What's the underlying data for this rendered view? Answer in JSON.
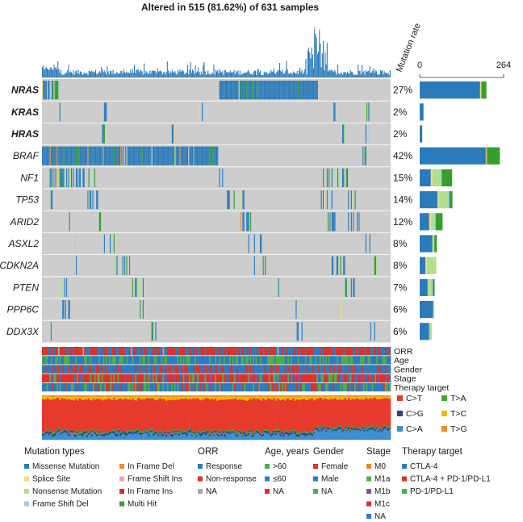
{
  "chart_data": {
    "type": "heatmap",
    "title": "Altered in 515 (81.62%) of 631 samples",
    "mutation_rate_label": "Mutation rate",
    "rate_axis": {
      "min": "0",
      "max": "264"
    },
    "genes": [
      {
        "name": "NRAS",
        "bold": true,
        "italic": true,
        "pct": "27%",
        "bars": [
          {
            "cat": "Missense Mutation",
            "value": 190
          },
          {
            "cat": "Splice Site",
            "value": 4
          },
          {
            "cat": "Multi Hit",
            "value": 16
          }
        ]
      },
      {
        "name": "KRAS",
        "bold": true,
        "italic": true,
        "pct": "2%",
        "bars": [
          {
            "cat": "Missense Mutation",
            "value": 12
          }
        ]
      },
      {
        "name": "HRAS",
        "bold": true,
        "italic": true,
        "pct": "2%",
        "bars": [
          {
            "cat": "Missense Mutation",
            "value": 8
          }
        ]
      },
      {
        "name": "BRAF",
        "bold": false,
        "italic": true,
        "pct": "42%",
        "bars": [
          {
            "cat": "Missense Mutation",
            "value": 207
          },
          {
            "cat": "In Frame Del",
            "value": 3
          },
          {
            "cat": "Frame Shift Ins",
            "value": 2
          },
          {
            "cat": "Multi Hit",
            "value": 40
          }
        ]
      },
      {
        "name": "NF1",
        "bold": false,
        "italic": true,
        "pct": "15%",
        "bars": [
          {
            "cat": "Missense Mutation",
            "value": 35
          },
          {
            "cat": "Splice Site",
            "value": 5
          },
          {
            "cat": "Nonsense Mutation",
            "value": 25
          },
          {
            "cat": "Frame Shift Del",
            "value": 4
          },
          {
            "cat": "Multi Hit",
            "value": 33
          }
        ]
      },
      {
        "name": "TP53",
        "bold": false,
        "italic": true,
        "pct": "14%",
        "bars": [
          {
            "cat": "Missense Mutation",
            "value": 56
          },
          {
            "cat": "Splice Site",
            "value": 3
          },
          {
            "cat": "Nonsense Mutation",
            "value": 30
          },
          {
            "cat": "Frame Shift Del",
            "value": 4
          },
          {
            "cat": "Multi Hit",
            "value": 10
          }
        ]
      },
      {
        "name": "ARID2",
        "bold": false,
        "italic": true,
        "pct": "12%",
        "bars": [
          {
            "cat": "Missense Mutation",
            "value": 30
          },
          {
            "cat": "Splice Site",
            "value": 6
          },
          {
            "cat": "Nonsense Mutation",
            "value": 10
          },
          {
            "cat": "Frame Shift Del",
            "value": 4
          },
          {
            "cat": "Multi Hit",
            "value": 22
          }
        ]
      },
      {
        "name": "ASXL2",
        "bold": false,
        "italic": true,
        "pct": "8%",
        "bars": [
          {
            "cat": "Missense Mutation",
            "value": 40
          },
          {
            "cat": "Nonsense Mutation",
            "value": 6
          },
          {
            "cat": "Multi Hit",
            "value": 8
          }
        ]
      },
      {
        "name": "CDKN2A",
        "bold": false,
        "italic": true,
        "pct": "8%",
        "bars": [
          {
            "cat": "Missense Mutation",
            "value": 18
          },
          {
            "cat": "Splice Site",
            "value": 4
          },
          {
            "cat": "Nonsense Mutation",
            "value": 30
          }
        ]
      },
      {
        "name": "PTEN",
        "bold": false,
        "italic": true,
        "pct": "7%",
        "bars": [
          {
            "cat": "Missense Mutation",
            "value": 25
          },
          {
            "cat": "Nonsense Mutation",
            "value": 10
          },
          {
            "cat": "Frame Shift Del",
            "value": 6
          },
          {
            "cat": "Multi Hit",
            "value": 6
          }
        ]
      },
      {
        "name": "PPP6C",
        "bold": false,
        "italic": true,
        "pct": "6%",
        "bars": [
          {
            "cat": "Missense Mutation",
            "value": 42
          },
          {
            "cat": "Nonsense Mutation",
            "value": 4
          }
        ]
      },
      {
        "name": "DDX3X",
        "bold": false,
        "italic": true,
        "pct": "6%",
        "bars": [
          {
            "cat": "Missense Mutation",
            "value": 30
          },
          {
            "cat": "Nonsense Mutation",
            "value": 8
          }
        ]
      }
    ],
    "clinical_tracks": [
      "ORR",
      "Age",
      "Gender",
      "Stage",
      "Therapy target"
    ],
    "substitution_types": [
      {
        "label": "C>T",
        "color": "#e53a2c"
      },
      {
        "label": "T>A",
        "color": "#3aa83a"
      },
      {
        "label": "C>G",
        "color": "#2e3f8f"
      },
      {
        "label": "T>C",
        "color": "#f0b800"
      },
      {
        "label": "C>A",
        "color": "#3d8fd0"
      },
      {
        "label": "T>G",
        "color": "#f08c20"
      }
    ],
    "legend": {
      "mutation_types": {
        "title": "Mutation types",
        "items": [
          {
            "label": "Missense Mutation",
            "color": "#2b7bba"
          },
          {
            "label": "In Frame Del",
            "color": "#f08a24"
          },
          {
            "label": "Splice Site",
            "color": "#f6d87e"
          },
          {
            "label": "Frame Shift Ins",
            "color": "#f4a6a6"
          },
          {
            "label": "Nonsense Mutation",
            "color": "#b2df8a"
          },
          {
            "label": "In Frame Ins",
            "color": "#e3272b"
          },
          {
            "label": "Frame Shift Del",
            "color": "#a6cee3"
          },
          {
            "label": "Multi Hit",
            "color": "#33a02c"
          }
        ]
      },
      "orr": {
        "title": "ORR",
        "items": [
          {
            "label": "Response",
            "color": "#2e7bbf"
          },
          {
            "label": "Non-response",
            "color": "#e03028"
          },
          {
            "label": "NA",
            "color": "#a8a8a8"
          }
        ]
      },
      "age": {
        "title": "Age, years",
        "items": [
          {
            "label": ">60",
            "color": "#4daf4a"
          },
          {
            "label": "≤60",
            "color": "#2e7bbf"
          },
          {
            "label": "NA",
            "color": "#e03028"
          }
        ]
      },
      "gender": {
        "title": "Gender",
        "items": [
          {
            "label": "Female",
            "color": "#e03028"
          },
          {
            "label": "Male",
            "color": "#2e7bbf"
          },
          {
            "label": "NA",
            "color": "#4daf4a"
          }
        ]
      },
      "stage": {
        "title": "Stage",
        "items": [
          {
            "label": "M0",
            "color": "#f08a24"
          },
          {
            "label": "M1a",
            "color": "#4daf4a"
          },
          {
            "label": "M1b",
            "color": "#8e4fa0"
          },
          {
            "label": "M1c",
            "color": "#e03028"
          },
          {
            "label": "NA",
            "color": "#2e7bbf"
          }
        ]
      },
      "therapy": {
        "title": "Therapy target",
        "items": [
          {
            "label": "CTLA-4",
            "color": "#2e7bbf"
          },
          {
            "label": "CTLA-4 + PD-1/PD-L1",
            "color": "#e03028"
          },
          {
            "label": "PD-1/PD-L1",
            "color": "#4daf4a"
          }
        ]
      }
    }
  }
}
